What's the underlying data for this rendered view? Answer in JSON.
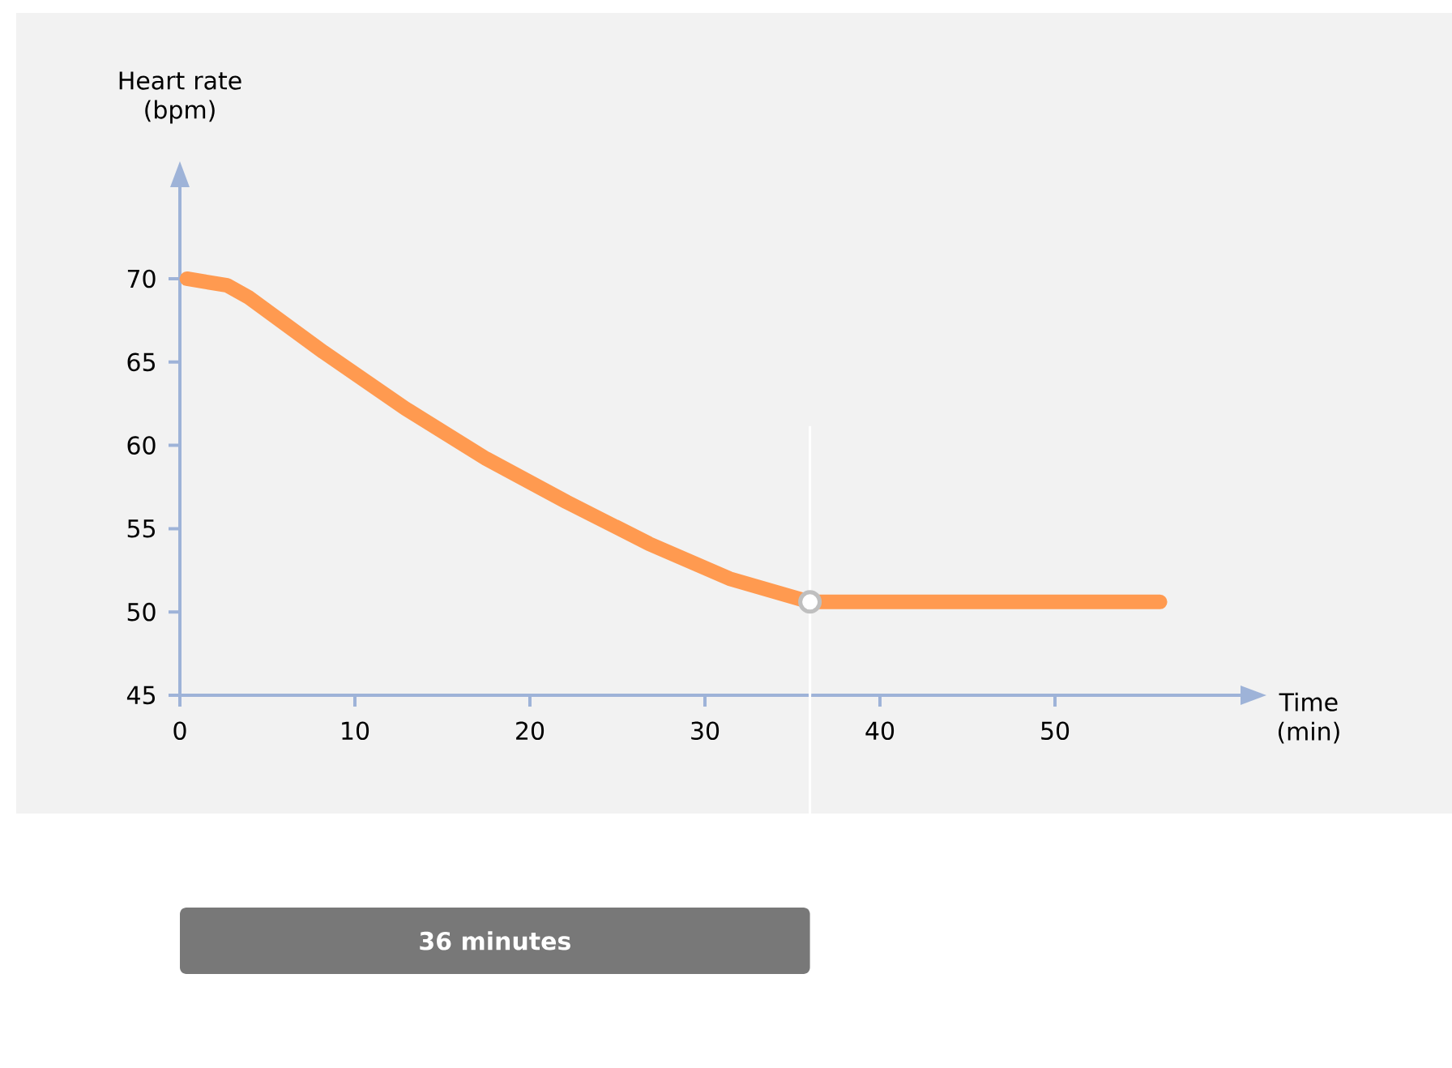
{
  "chart_data": {
    "type": "line",
    "xlabel": "Time (min)",
    "ylabel": "Heart rate (bpm)",
    "x": [
      0.4,
      2.7,
      3.9,
      8.2,
      12.9,
      17.5,
      22.1,
      26.8,
      31.4,
      36,
      46,
      56
    ],
    "series": [
      {
        "color": "#ff9a50",
        "values": [
          70,
          69.6,
          68.9,
          65.6,
          62.2,
          59.2,
          56.6,
          54.1,
          52.0,
          50.6,
          50.6,
          50.6
        ]
      }
    ],
    "xlim": [
      0,
      60.6
    ],
    "ylim": [
      45,
      75.5
    ],
    "xticks": [
      0,
      10,
      20,
      30,
      40,
      50
    ],
    "yticks": [
      45,
      50,
      55,
      60,
      65,
      70
    ],
    "ref_lines": [
      {
        "axis": "x",
        "value": 36,
        "label": "36 minutes"
      }
    ]
  }
}
